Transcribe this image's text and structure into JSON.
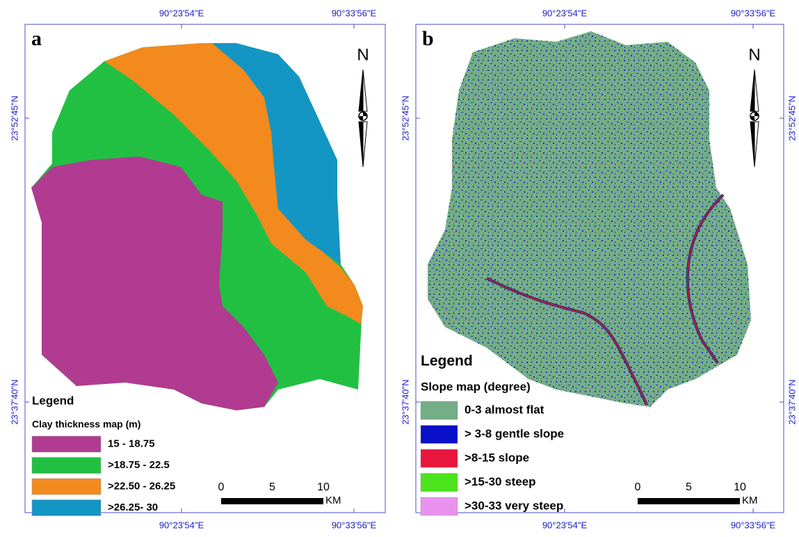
{
  "panels": [
    {
      "label": "a",
      "north": "N",
      "coords": {
        "top": [
          "90°23'54\"E",
          "90°33'56\"E"
        ],
        "bottom": [
          "90°23'54\"E",
          "90°33'56\"E"
        ],
        "left": [
          "23°52'45\"N",
          "23°37'40\"N"
        ]
      },
      "legend": {
        "title": "Legend",
        "subtitle": "Clay  thickness map (m)",
        "items": [
          {
            "label": "15 - 18.75",
            "color": "#b13b90"
          },
          {
            "label": ">18.75 - 22.5",
            "color": "#21c043"
          },
          {
            "label": ">22.50 - 26.25",
            "color": "#f28a1e"
          },
          {
            "label": ">26.25- 30",
            "color": "#1496c4"
          }
        ]
      },
      "scale_bar": {
        "ticks": [
          "0",
          "5",
          "10"
        ],
        "unit": "KM"
      }
    },
    {
      "label": "b",
      "north": "N",
      "coords": {
        "top": [
          "90°23'54\"E",
          "90°33'56\"E"
        ],
        "bottom": [
          "90°23'54\"E",
          "90°33'56\"E"
        ],
        "left": [
          "23°52'45\"N",
          "23°37'40\"N"
        ],
        "right": [
          "23°52'45\"N",
          "23°37'40\"N"
        ]
      },
      "legend": {
        "title": "Legend",
        "subtitle": "Slope map (degree)",
        "items": [
          {
            "label": "0-3 almost flat",
            "color": "#73ae86"
          },
          {
            "label": "> 3-8 gentle slope",
            "color": "#0a0fc8"
          },
          {
            "label": ">8-15 slope",
            "color": "#e8153c"
          },
          {
            "label": ">15-30 steep",
            "color": "#4ce21c"
          },
          {
            "label": ">30-33 very steep",
            "color": "#e892ee"
          }
        ]
      },
      "scale_bar": {
        "ticks": [
          "0",
          "5",
          "10"
        ],
        "unit": "KM"
      }
    }
  ]
}
